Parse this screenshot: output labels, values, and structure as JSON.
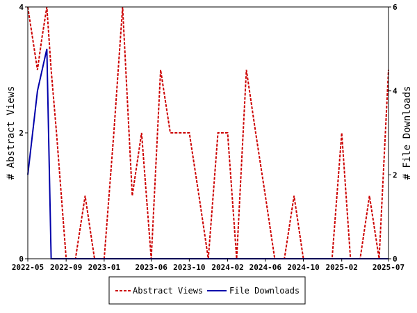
{
  "chart_data": {
    "type": "line",
    "x_tick_labels": [
      "2022-05",
      "2022-09",
      "2023-01",
      "2023-06",
      "2023-10",
      "2024-02",
      "2024-06",
      "2024-10",
      "2025-02",
      "2025-07"
    ],
    "x_tick_dates": [
      "2022-05-01",
      "2022-09-01",
      "2023-01-01",
      "2023-06-01",
      "2023-10-01",
      "2024-02-01",
      "2024-06-01",
      "2024-10-01",
      "2025-02-01",
      "2025-07-01"
    ],
    "x_range": [
      "2022-05-01",
      "2025-07-01"
    ],
    "y_left": {
      "label": "# Abstract Views",
      "ticks": [
        0,
        2,
        4
      ],
      "range": [
        0,
        4
      ]
    },
    "y_right": {
      "label": "# File Downloads",
      "ticks": [
        0,
        2,
        4,
        6
      ],
      "range": [
        0,
        6
      ]
    },
    "series": [
      {
        "name": "Abstract Views",
        "axis": "left",
        "color": "#cc0000",
        "style": "dashed",
        "x": [
          "2022-05-01",
          "2022-06-01",
          "2022-06-15",
          "2022-07-01",
          "2022-07-15",
          "2022-08-01",
          "2022-09-01",
          "2022-10-01",
          "2022-11-01",
          "2022-12-01",
          "2023-01-01",
          "2023-02-01",
          "2023-03-01",
          "2023-04-01",
          "2023-05-01",
          "2023-06-01",
          "2023-07-01",
          "2023-08-01",
          "2023-09-01",
          "2023-10-01",
          "2023-11-01",
          "2023-12-01",
          "2024-01-01",
          "2024-02-01",
          "2024-03-01",
          "2024-04-01",
          "2024-05-01",
          "2024-06-01",
          "2024-07-01",
          "2024-08-01",
          "2024-09-01",
          "2024-10-01",
          "2024-11-01",
          "2024-12-01",
          "2025-01-01",
          "2025-02-01",
          "2025-03-01",
          "2025-04-01",
          "2025-05-01",
          "2025-06-01",
          "2025-07-01"
        ],
        "y": [
          4,
          3,
          3.5,
          4,
          3,
          2,
          0,
          0,
          1,
          0,
          0,
          2,
          4,
          1,
          2,
          0,
          3,
          2,
          2,
          2,
          1,
          0,
          2,
          2,
          0,
          3,
          2,
          1,
          0,
          0,
          1,
          0,
          0,
          0,
          0,
          2,
          0,
          0,
          1,
          0,
          3
        ]
      },
      {
        "name": "File Downloads",
        "axis": "right",
        "color": "#0000aa",
        "style": "solid",
        "x": [
          "2022-05-01",
          "2022-06-01",
          "2022-07-01",
          "2022-07-15",
          "2022-08-01",
          "2022-09-01",
          "2023-01-01",
          "2024-01-01",
          "2025-01-01",
          "2025-07-01"
        ],
        "y": [
          2,
          4,
          5,
          0,
          0,
          0,
          0,
          0,
          0,
          0
        ]
      }
    ],
    "legend_position": "bottom",
    "grid": false
  }
}
